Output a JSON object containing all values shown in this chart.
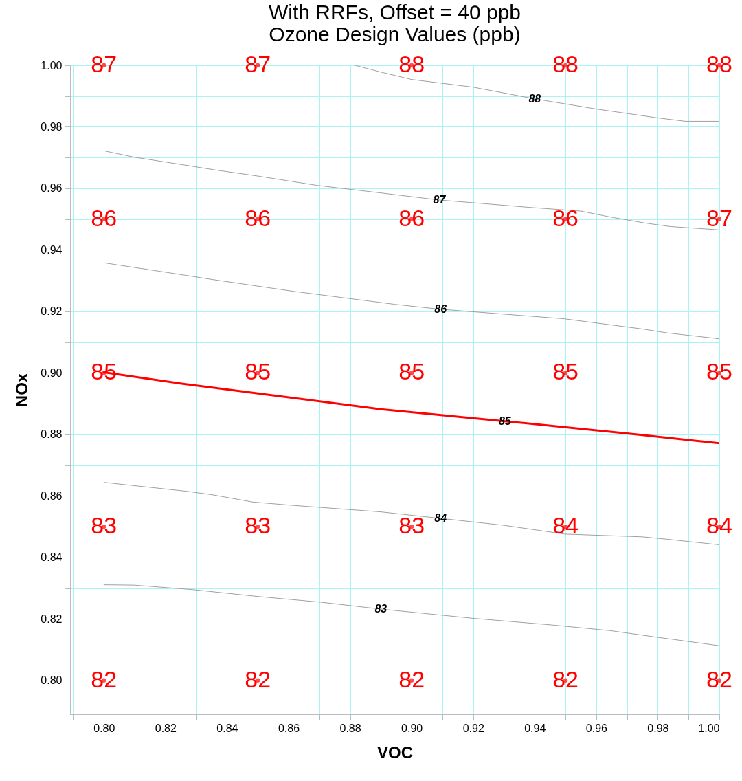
{
  "chart_data": {
    "type": "line",
    "title": "With RRFs, Offset = 40 ppb",
    "subtitle": "Ozone Design Values (ppb)",
    "xlabel": "VOC",
    "ylabel": "NOx",
    "xlim": [
      0.789,
      1.0
    ],
    "ylim": [
      0.789,
      1.0
    ],
    "xticks": [
      {
        "value": 0.79,
        "label": null
      },
      {
        "value": 0.8,
        "label": "0.80"
      },
      {
        "value": 0.81,
        "label": null
      },
      {
        "value": 0.82,
        "label": "0.82"
      },
      {
        "value": 0.83,
        "label": null
      },
      {
        "value": 0.84,
        "label": "0.84"
      },
      {
        "value": 0.85,
        "label": null
      },
      {
        "value": 0.86,
        "label": "0.86"
      },
      {
        "value": 0.87,
        "label": null
      },
      {
        "value": 0.88,
        "label": "0.88"
      },
      {
        "value": 0.89,
        "label": null
      },
      {
        "value": 0.9,
        "label": "0.90"
      },
      {
        "value": 0.91,
        "label": null
      },
      {
        "value": 0.92,
        "label": "0.92"
      },
      {
        "value": 0.93,
        "label": null
      },
      {
        "value": 0.94,
        "label": "0.94"
      },
      {
        "value": 0.95,
        "label": null
      },
      {
        "value": 0.96,
        "label": "0.96"
      },
      {
        "value": 0.97,
        "label": null
      },
      {
        "value": 0.98,
        "label": "0.98"
      },
      {
        "value": 0.99,
        "label": null
      },
      {
        "value": 1.0,
        "label": "1.00"
      }
    ],
    "yticks": [
      {
        "value": 0.79,
        "label": null
      },
      {
        "value": 0.8,
        "label": "0.80"
      },
      {
        "value": 0.81,
        "label": null
      },
      {
        "value": 0.82,
        "label": "0.82"
      },
      {
        "value": 0.83,
        "label": null
      },
      {
        "value": 0.84,
        "label": "0.84"
      },
      {
        "value": 0.85,
        "label": null
      },
      {
        "value": 0.86,
        "label": "0.86"
      },
      {
        "value": 0.87,
        "label": null
      },
      {
        "value": 0.88,
        "label": "0.88"
      },
      {
        "value": 0.89,
        "label": null
      },
      {
        "value": 0.9,
        "label": "0.90"
      },
      {
        "value": 0.91,
        "label": null
      },
      {
        "value": 0.92,
        "label": "0.92"
      },
      {
        "value": 0.93,
        "label": null
      },
      {
        "value": 0.94,
        "label": "0.94"
      },
      {
        "value": 0.95,
        "label": null
      },
      {
        "value": 0.96,
        "label": "0.96"
      },
      {
        "value": 0.97,
        "label": null
      },
      {
        "value": 0.98,
        "label": "0.98"
      },
      {
        "value": 0.99,
        "label": null
      },
      {
        "value": 1.0,
        "label": "1.00"
      }
    ],
    "grid": true,
    "line_style": "solid",
    "series": [
      {
        "name": "88",
        "color": "#a0a0a0",
        "x": [
          0.8816,
          0.89,
          0.9,
          0.92,
          0.94,
          0.96,
          0.98,
          0.989,
          1.0
        ],
        "values": [
          1.0,
          0.9978,
          0.9954,
          0.9929,
          0.9891,
          0.9858,
          0.9829,
          0.9818,
          0.9818
        ]
      },
      {
        "name": "87",
        "color": "#a0a0a0",
        "x": [
          0.8,
          0.81,
          0.828,
          0.836,
          0.85,
          0.869,
          0.89,
          0.909,
          0.9385,
          0.955,
          0.9645,
          0.976,
          0.984,
          1.0
        ],
        "values": [
          0.9722,
          0.9701,
          0.9673,
          0.966,
          0.964,
          0.961,
          0.9585,
          0.9562,
          0.9538,
          0.9526,
          0.9507,
          0.9487,
          0.9476,
          0.9465
        ]
      },
      {
        "name": "86",
        "color": "#a0a0a0",
        "x": [
          0.8,
          0.8268,
          0.835,
          0.8618,
          0.8945,
          0.9094,
          0.9496,
          0.9749,
          0.9832,
          1.0
        ],
        "values": [
          0.9358,
          0.9317,
          0.9304,
          0.9265,
          0.9223,
          0.9207,
          0.9176,
          0.9143,
          0.913,
          0.9111
        ]
      },
      {
        "name": "85",
        "color": "#ff0000",
        "x": [
          0.8,
          0.8253,
          0.89,
          0.9303,
          0.975,
          1.0
        ],
        "values": [
          0.9002,
          0.8965,
          0.8882,
          0.8843,
          0.8798,
          0.8771
        ]
      },
      {
        "name": "84",
        "color": "#a0a0a0",
        "x": [
          0.8,
          0.8268,
          0.835,
          0.8484,
          0.8604,
          0.89,
          0.9094,
          0.9303,
          0.9496,
          0.975,
          0.9832,
          1.0
        ],
        "values": [
          0.8644,
          0.8615,
          0.8604,
          0.858,
          0.857,
          0.8548,
          0.8527,
          0.8504,
          0.8476,
          0.8467,
          0.8459,
          0.8441
        ]
      },
      {
        "name": "83",
        "color": "#a0a0a0",
        "x": [
          0.8,
          0.8097,
          0.829,
          0.85,
          0.8708,
          0.89,
          0.92,
          0.946,
          0.9645,
          0.9795,
          1.0
        ],
        "values": [
          0.8311,
          0.831,
          0.8295,
          0.8273,
          0.8254,
          0.8232,
          0.8202,
          0.818,
          0.8162,
          0.8141,
          0.8113
        ]
      },
      {
        "type": "scatter",
        "marker": "circle",
        "color": "#ff0000",
        "x": [
          0.8,
          0.85,
          0.9,
          0.95,
          1.0,
          0.8,
          0.85,
          0.9,
          0.95,
          1.0,
          0.8,
          0.85,
          0.9,
          0.95,
          1.0,
          0.8,
          0.85,
          0.9,
          0.95,
          1.0,
          0.8,
          0.85,
          0.9,
          0.95,
          1.0
        ],
        "values": [
          1.0,
          1.0,
          1.0,
          1.0,
          1.0,
          0.95,
          0.95,
          0.95,
          0.95,
          0.95,
          0.9,
          0.9,
          0.9,
          0.9,
          0.9,
          0.85,
          0.85,
          0.85,
          0.85,
          0.85,
          0.8,
          0.8,
          0.8,
          0.8,
          0.8
        ]
      }
    ],
    "annotations": [
      {
        "text": "87",
        "x": 0.8,
        "y": 1.0
      },
      {
        "text": "87",
        "x": 0.85,
        "y": 1.0
      },
      {
        "text": "88",
        "x": 0.9,
        "y": 1.0
      },
      {
        "text": "88",
        "x": 0.95,
        "y": 1.0
      },
      {
        "text": "88",
        "x": 1.0,
        "y": 1.0
      },
      {
        "text": "86",
        "x": 0.8,
        "y": 0.95
      },
      {
        "text": "86",
        "x": 0.85,
        "y": 0.95
      },
      {
        "text": "86",
        "x": 0.9,
        "y": 0.95
      },
      {
        "text": "86",
        "x": 0.95,
        "y": 0.95
      },
      {
        "text": "87",
        "x": 1.0,
        "y": 0.95
      },
      {
        "text": "85",
        "x": 0.8,
        "y": 0.9
      },
      {
        "text": "85",
        "x": 0.85,
        "y": 0.9
      },
      {
        "text": "85",
        "x": 0.9,
        "y": 0.9
      },
      {
        "text": "85",
        "x": 0.95,
        "y": 0.9
      },
      {
        "text": "85",
        "x": 1.0,
        "y": 0.9
      },
      {
        "text": "83",
        "x": 0.8,
        "y": 0.85
      },
      {
        "text": "83",
        "x": 0.85,
        "y": 0.85
      },
      {
        "text": "83",
        "x": 0.9,
        "y": 0.85
      },
      {
        "text": "84",
        "x": 0.95,
        "y": 0.85
      },
      {
        "text": "84",
        "x": 1.0,
        "y": 0.85
      },
      {
        "text": "82",
        "x": 0.8,
        "y": 0.8
      },
      {
        "text": "82",
        "x": 0.85,
        "y": 0.8
      },
      {
        "text": "82",
        "x": 0.9,
        "y": 0.8
      },
      {
        "text": "82",
        "x": 0.95,
        "y": 0.8
      },
      {
        "text": "82",
        "x": 1.0,
        "y": 0.8
      }
    ]
  }
}
